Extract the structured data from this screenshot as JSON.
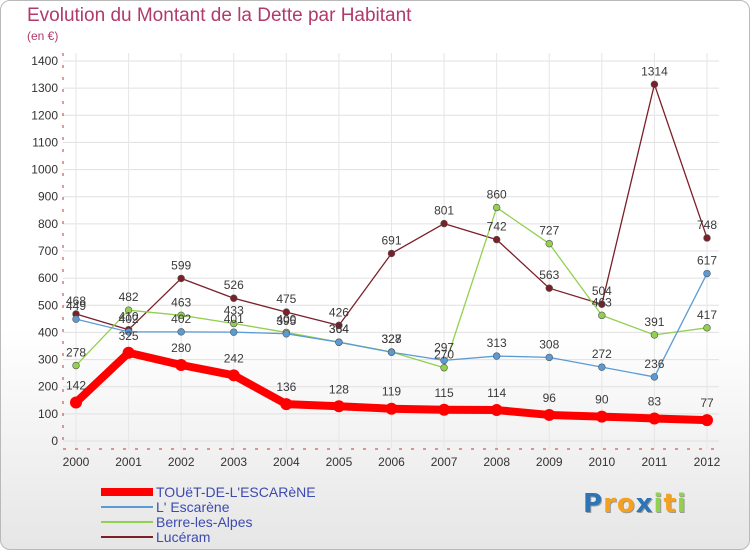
{
  "chart_data": {
    "type": "line",
    "title": "Evolution du Montant de la Dette par Habitant",
    "ylabel": "(en €)",
    "xlabel": "",
    "categories": [
      "2000",
      "2001",
      "2002",
      "2003",
      "2004",
      "2005",
      "2006",
      "2007",
      "2008",
      "2009",
      "2010",
      "2011",
      "2012"
    ],
    "ylim": [
      0,
      1400
    ],
    "yticks": [
      0,
      100,
      200,
      300,
      400,
      500,
      600,
      700,
      800,
      900,
      1000,
      1100,
      1200,
      1300,
      1400
    ],
    "grid": true,
    "legend_position": "bottom-left",
    "series": [
      {
        "name": "TOUëT-DE-L'ESCARèNE",
        "color": "#ff0000",
        "values": [
          142,
          325,
          280,
          242,
          136,
          128,
          119,
          115,
          114,
          96,
          90,
          83,
          77
        ]
      },
      {
        "name": "L' Escarène",
        "color": "#5b9bd5",
        "values": [
          449,
          402,
          402,
          401,
          395,
          364,
          327,
          297,
          313,
          308,
          272,
          236,
          617
        ]
      },
      {
        "name": "Berre-les-Alpes",
        "color": "#92d050",
        "values": [
          278,
          482,
          463,
          433,
          400,
          364,
          328,
          270,
          860,
          727,
          463,
          391,
          417
        ]
      },
      {
        "name": "Lucéram",
        "color": "#7b1f28",
        "values": [
          468,
          410,
          599,
          526,
          475,
          426,
          691,
          801,
          742,
          563,
          504,
          1314,
          748
        ]
      }
    ]
  },
  "logo": {
    "text": "Proxiti",
    "colors": [
      "#2e75b6",
      "#f4a020",
      "#f4a020",
      "#2e75b6",
      "#92d050",
      "#f4a020",
      "#92d050"
    ]
  }
}
